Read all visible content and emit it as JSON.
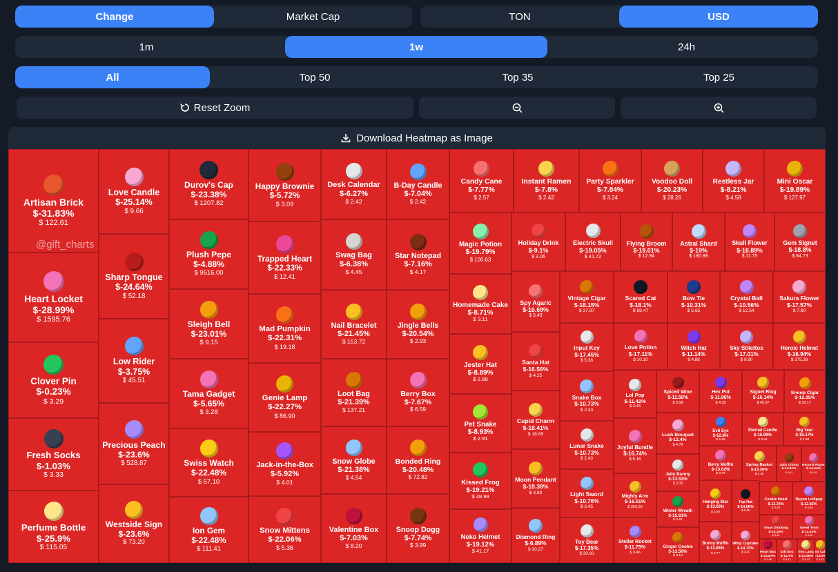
{
  "controls": {
    "metric_toggle": [
      {
        "label": "Change",
        "active": true
      },
      {
        "label": "Market Cap",
        "active": false
      }
    ],
    "currency_toggle": [
      {
        "label": "TON",
        "active": false
      },
      {
        "label": "USD",
        "active": true
      }
    ],
    "period_toggle": [
      {
        "label": "1m",
        "active": false
      },
      {
        "label": "1w",
        "active": true
      },
      {
        "label": "24h",
        "active": false
      }
    ],
    "filter_toggle": [
      {
        "label": "All",
        "active": true
      },
      {
        "label": "Top 50",
        "active": false
      },
      {
        "label": "Top 35",
        "active": false
      },
      {
        "label": "Top 25",
        "active": false
      }
    ],
    "reset_zoom_label": "Reset Zoom",
    "download_label": "Download Heatmap as Image"
  },
  "watermark": "@gift_charts",
  "colors": {
    "tile": "#dc2626",
    "active": "#3b82f6",
    "panel": "#1f2937",
    "background": "#141b27"
  },
  "tiles": [
    {
      "name": "Artisan Brick",
      "change": "$-31.83%",
      "price": "$ 122.61",
      "icon": "brick-icon",
      "color": "#e8562b"
    },
    {
      "name": "Heart Locket",
      "change": "$-28.99%",
      "price": "$ 1595.76",
      "icon": "heart-locket-icon",
      "color": "#f472b6"
    },
    {
      "name": "Clover Pin",
      "change": "$-0.23%",
      "price": "$ 3.29",
      "icon": "clover-icon",
      "color": "#22c55e"
    },
    {
      "name": "Fresh Socks",
      "change": "$-1.03%",
      "price": "$ 3.33",
      "icon": "socks-icon",
      "color": "#374151"
    },
    {
      "name": "Perfume Bottle",
      "change": "$-25.9%",
      "price": "$ 115.05",
      "icon": "perfume-icon",
      "color": "#fde68a"
    },
    {
      "name": "Love Candle",
      "change": "$-25.14%",
      "price": "$ 9.66",
      "icon": "candle-icon",
      "color": "#f9a8d4"
    },
    {
      "name": "Sharp Tongue",
      "change": "$-24.64%",
      "price": "$ 52.18",
      "icon": "lips-icon",
      "color": "#b91c1c"
    },
    {
      "name": "Low Rider",
      "change": "$-3.75%",
      "price": "$ 45.51",
      "icon": "car-icon",
      "color": "#60a5fa"
    },
    {
      "name": "Precious Peach",
      "change": "$-23.6%",
      "price": "$ 528.87",
      "icon": "peach-icon",
      "color": "#a78bfa"
    },
    {
      "name": "Westside Sign",
      "change": "$-23.6%",
      "price": "$ 73.20",
      "icon": "hand-icon",
      "color": "#fbbf24"
    },
    {
      "name": "Durov's Cap",
      "change": "$-23.38%",
      "price": "$ 1207.82",
      "icon": "cap-icon",
      "color": "#1f2937"
    },
    {
      "name": "Plush Pepe",
      "change": "$-4.88%",
      "price": "$ 9516.00",
      "icon": "frog-icon",
      "color": "#16a34a"
    },
    {
      "name": "Sleigh Bell",
      "change": "$-23.01%",
      "price": "$ 9.15",
      "icon": "bell-icon",
      "color": "#f59e0b"
    },
    {
      "name": "Tama Gadget",
      "change": "$-5.65%",
      "price": "$ 3.28",
      "icon": "gadget-icon",
      "color": "#f472b6"
    },
    {
      "name": "Swiss Watch",
      "change": "$-22.48%",
      "price": "$ 57.10",
      "icon": "watch-icon",
      "color": "#facc15"
    },
    {
      "name": "Ion Gem",
      "change": "$-22.48%",
      "price": "$ 111.41",
      "icon": "gem-icon",
      "color": "#93c5fd"
    },
    {
      "name": "Happy Brownie",
      "change": "$-5.72%",
      "price": "$ 3.09",
      "icon": "brownie-icon",
      "color": "#92400e"
    },
    {
      "name": "Trapped Heart",
      "change": "$-22.33%",
      "price": "$ 12.41",
      "icon": "heart-icon",
      "color": "#ec4899"
    },
    {
      "name": "Mad Pumpkin",
      "change": "$-22.31%",
      "price": "$ 19.18",
      "icon": "pumpkin-icon",
      "color": "#f97316"
    },
    {
      "name": "Genie Lamp",
      "change": "$-22.27%",
      "price": "$ 86.90",
      "icon": "lamp-icon",
      "color": "#eab308"
    },
    {
      "name": "Jack-in-the-Box",
      "change": "$-5.92%",
      "price": "$ 4.01",
      "icon": "box-icon",
      "color": "#a855f7"
    },
    {
      "name": "Snow Mittens",
      "change": "$-22.06%",
      "price": "$ 5.36",
      "icon": "mittens-icon",
      "color": "#ef4444"
    },
    {
      "name": "Desk Calendar",
      "change": "$-6.27%",
      "price": "$ 2.42",
      "icon": "calendar-icon",
      "color": "#e5e7eb"
    },
    {
      "name": "Swag Bag",
      "change": "$-6.38%",
      "price": "$ 4.45",
      "icon": "bag-icon",
      "color": "#d6d3d1"
    },
    {
      "name": "Nail Bracelet",
      "change": "$-21.45%",
      "price": "$ 153.72",
      "icon": "bracelet-icon",
      "color": "#fbbf24"
    },
    {
      "name": "Loot Bag",
      "change": "$-21.39%",
      "price": "$ 137.21",
      "icon": "loot-bag-icon",
      "color": "#d97706"
    },
    {
      "name": "Snow Globe",
      "change": "$-21.38%",
      "price": "$ 4.54",
      "icon": "globe-icon",
      "color": "#93c5fd"
    },
    {
      "name": "Valentine Box",
      "change": "$-7.03%",
      "price": "$ 8.20",
      "icon": "valentine-icon",
      "color": "#be123c"
    },
    {
      "name": "B-Day Candle",
      "change": "$-7.04%",
      "price": "$ 2.42",
      "icon": "bday-candle-icon",
      "color": "#60a5fa"
    },
    {
      "name": "Star Notepad",
      "change": "$-7.16%",
      "price": "$ 4.17",
      "icon": "notepad-icon",
      "color": "#7c2d12"
    },
    {
      "name": "Jingle Bells",
      "change": "$-20.54%",
      "price": "$ 2.93",
      "icon": "jingle-bells-icon",
      "color": "#f59e0b"
    },
    {
      "name": "Berry Box",
      "change": "$-7.67%",
      "price": "$ 6.59",
      "icon": "berry-icon",
      "color": "#f472b6"
    },
    {
      "name": "Bonded Ring",
      "change": "$-20.48%",
      "price": "$ 72.82",
      "icon": "ring-icon",
      "color": "#f59e0b"
    },
    {
      "name": "Snoop Dogg",
      "change": "$-7.74%",
      "price": "$ 3.99",
      "icon": "dog-icon",
      "color": "#78350f"
    },
    {
      "name": "Candy Cane",
      "change": "$-7.77%",
      "price": "$ 2.57",
      "icon": "candy-cane-icon",
      "color": "#f87171"
    },
    {
      "name": "Instant Ramen",
      "change": "$-7.8%",
      "price": "$ 2.42",
      "icon": "ramen-icon",
      "color": "#fcd34d"
    },
    {
      "name": "Party Sparkler",
      "change": "$-7.84%",
      "price": "$ 3.24",
      "icon": "sparkler-icon",
      "color": "#f97316"
    },
    {
      "name": "Voodoo Doll",
      "change": "$-20.23%",
      "price": "$ 28.26",
      "icon": "doll-icon",
      "color": "#d6a35c"
    },
    {
      "name": "Restless Jar",
      "change": "$-8.21%",
      "price": "$ 4.58",
      "icon": "jar-icon",
      "color": "#c4b5fd"
    },
    {
      "name": "Mini Oscar",
      "change": "$-19.89%",
      "price": "$ 127.97",
      "icon": "oscar-icon",
      "color": "#eab308"
    },
    {
      "name": "Magic Potion",
      "change": "$-19.79%",
      "price": "$ 100.63",
      "icon": "potion-icon",
      "color": "#86efac"
    },
    {
      "name": "Homemade Cake",
      "change": "$-8.71%",
      "price": "$ 3.11",
      "icon": "cake-icon",
      "color": "#fde68a"
    },
    {
      "name": "Jester Hat",
      "change": "$-8.89%",
      "price": "$ 2.88",
      "icon": "jester-hat-icon",
      "color": "#fbbf24"
    },
    {
      "name": "Pet Snake",
      "change": "$-8.93%",
      "price": "$ 2.91",
      "icon": "snake-icon",
      "color": "#a3e635"
    },
    {
      "name": "Kissed Frog",
      "change": "$-19.21%",
      "price": "$ 48.99",
      "icon": "kissed-frog-icon",
      "color": "#22c55e"
    },
    {
      "name": "Neko Helmet",
      "change": "$-19.12%",
      "price": "$ 41.17",
      "icon": "helmet-icon",
      "color": "#a78bfa"
    },
    {
      "name": "Holiday Drink",
      "change": "$-9.1%",
      "price": "$ 3.06",
      "icon": "drink-icon",
      "color": "#ef4444"
    },
    {
      "name": "Electric Skull",
      "change": "$-19.05%",
      "price": "$ 41.72",
      "icon": "skull-icon",
      "color": "#e5e7eb"
    },
    {
      "name": "Flying Broom",
      "change": "$-19.01%",
      "price": "$ 12.94",
      "icon": "broom-icon",
      "color": "#b45309"
    },
    {
      "name": "Astral Shard",
      "change": "$-19%",
      "price": "$ 180.88",
      "icon": "shard-icon",
      "color": "#bfdbfe"
    },
    {
      "name": "Skull Flower",
      "change": "$-18.89%",
      "price": "$ 11.75",
      "icon": "skull-flower-icon",
      "color": "#c084fc"
    },
    {
      "name": "Gem Signet",
      "change": "$-18.8%",
      "price": "$ 84.73",
      "icon": "signet-icon",
      "color": "#9ca3af"
    },
    {
      "name": "Spy Agaric",
      "change": "$-16.69%",
      "price": "$ 5.49",
      "icon": "mushroom-icon",
      "color": "#f87171"
    },
    {
      "name": "Vintage Cigar",
      "change": "$-18.15%",
      "price": "$ 37.97",
      "icon": "cigar-icon",
      "color": "#d97706"
    },
    {
      "name": "Scared Cat",
      "change": "$-18.1%",
      "price": "$ 88.47",
      "icon": "cat-icon",
      "color": "#111827"
    },
    {
      "name": "Bow Tie",
      "change": "$-10.31%",
      "price": "$ 5.65",
      "icon": "bow-tie-icon",
      "color": "#1e3a8a"
    },
    {
      "name": "Crystal Ball",
      "change": "$-10.56%",
      "price": "$ 12.54",
      "icon": "crystal-ball-icon",
      "color": "#c084fc"
    },
    {
      "name": "Sakura Flower",
      "change": "$-17.57%",
      "price": "$ 7.80",
      "icon": "sakura-icon",
      "color": "#f9a8d4"
    },
    {
      "name": "Santa Hat",
      "change": "$-16.56%",
      "price": "$ 4.25",
      "icon": "santa-hat-icon",
      "color": "#ef4444"
    },
    {
      "name": "Input Key",
      "change": "$-17.45%",
      "price": "$ 5.38",
      "icon": "key-icon",
      "color": "#e5e7eb"
    },
    {
      "name": "Love Potion",
      "change": "$-17.11%",
      "price": "$ 10.10",
      "icon": "love-potion-icon",
      "color": "#f472b6"
    },
    {
      "name": "Witch Hat",
      "change": "$-11.14%",
      "price": "$ 4.88",
      "icon": "witch-hat-icon",
      "color": "#7c3aed"
    },
    {
      "name": "Sky Stilettos",
      "change": "$-17.01%",
      "price": "$ 9.80",
      "icon": "stiletto-icon",
      "color": "#c4b5fd"
    },
    {
      "name": "Heroic Helmet",
      "change": "$-16.94%",
      "price": "$ 375.39",
      "icon": "heroic-helmet-icon",
      "color": "#fbbf24"
    },
    {
      "name": "Cupid Charm",
      "change": "$-18.41%",
      "price": "$ 18.65",
      "icon": "cupid-icon",
      "color": "#fcd34d"
    },
    {
      "name": "Snake Box",
      "change": "$-10.73%",
      "price": "$ 2.43",
      "icon": "snake-box-icon",
      "color": "#93c5fd"
    },
    {
      "name": "Lol Pop",
      "change": "$-11.42%",
      "price": "$ 3.43",
      "icon": "lollipop-icon",
      "color": "#e5e7eb"
    },
    {
      "name": "Spiced Wine",
      "change": "$-11.58%",
      "price": "$ 3.08",
      "icon": "wine-icon",
      "color": "#991b1b"
    },
    {
      "name": "Hex Pot",
      "change": "$-11.96%",
      "price": "$ 4.30",
      "icon": "hex-pot-icon",
      "color": "#7c3aed"
    },
    {
      "name": "Signet Ring",
      "change": "$-16.14%",
      "price": "$ 45.37",
      "icon": "signet-ring-icon",
      "color": "#fbbf24"
    },
    {
      "name": "Snoop Cigar",
      "change": "$-12.35%",
      "price": "$ 10.17",
      "icon": "snoop-cigar-icon",
      "color": "#f59e0b"
    },
    {
      "name": "Moon Pendant",
      "change": "$-18.38%",
      "price": "$ 3.83",
      "icon": "moon-icon",
      "color": "#fbbf24"
    },
    {
      "name": "Lunar Snake",
      "change": "$-10.73%",
      "price": "$ 2.43",
      "icon": "lunar-snake-icon",
      "color": "#e5e7eb"
    },
    {
      "name": "Joyful Bundle",
      "change": "$-16.74%",
      "price": "$ 5.16",
      "icon": "bundle-icon",
      "color": "#f472b6"
    },
    {
      "name": "Lush Bouquet",
      "change": "$-12.4%",
      "price": "$ 4.76",
      "icon": "bouquet-icon",
      "color": "#f9a8d4"
    },
    {
      "name": "Evil Eye",
      "change": "$-12.8%",
      "price": "$ 5.88",
      "icon": "evil-eye-icon",
      "color": "#3b82f6"
    },
    {
      "name": "Eternal Candle",
      "change": "$-15.99%",
      "price": "$ 5.55",
      "icon": "eternal-candle-icon",
      "color": "#fde68a"
    },
    {
      "name": "Big Year",
      "change": "$-15.17%",
      "price": "$ 4.98",
      "icon": "big-year-icon",
      "color": "#fbbf24"
    },
    {
      "name": "Light Sword",
      "change": "$-10.76%",
      "price": "$ 3.45",
      "icon": "sword-icon",
      "color": "#93c5fd"
    },
    {
      "name": "Mighty Arm",
      "change": "$-16.51%",
      "price": "$ 263.65",
      "icon": "arm-icon",
      "color": "#fbbf24"
    },
    {
      "name": "Jelly Bunny",
      "change": "$-13.53%",
      "price": "$ 3.33",
      "icon": "bunny-icon",
      "color": "#e5e7eb"
    },
    {
      "name": "Berry Muffin",
      "change": "$-13.62%",
      "price": "$ 3.37",
      "icon": "muffin-icon",
      "color": "#f472b6"
    },
    {
      "name": "Spring Basket",
      "change": "$-15.36%",
      "price": "$ 4.36",
      "icon": "basket-icon",
      "color": "#fcd34d"
    },
    {
      "name": "Jolly Chimp",
      "change": "$-14.81%",
      "price": "$ 4.61",
      "icon": "chimp-icon",
      "color": "#92400e"
    },
    {
      "name": "Record Player",
      "change": "$-14.44%",
      "price": "$ 6.61",
      "icon": "record-icon",
      "color": "#f472b6"
    },
    {
      "name": "Diamond Ring",
      "change": "$-6.89%",
      "price": "$ 30.27",
      "icon": "diamond-ring-icon",
      "color": "#93c5fd"
    },
    {
      "name": "Toy Bear",
      "change": "$-17.35%",
      "price": "$ 30.60",
      "icon": "bear-icon",
      "color": "#e5e7eb"
    },
    {
      "name": "Stellar Rocket",
      "change": "$-11.75%",
      "price": "$ 3.46",
      "icon": "rocket-icon",
      "color": "#a78bfa"
    },
    {
      "name": "Winter Wreath",
      "change": "$-15.61%",
      "price": "$ 3.61",
      "icon": "wreath-icon",
      "color": "#16a34a"
    },
    {
      "name": "Ginger Cookie",
      "change": "$-13.56%",
      "price": "$ 3.18",
      "icon": "cookie-icon",
      "color": "#d97706"
    },
    {
      "name": "Hanging Star",
      "change": "$-13.03%",
      "price": "$ 3.50",
      "icon": "star-icon",
      "color": "#facc15"
    },
    {
      "name": "Bunny Muffin",
      "change": "$-13.85%",
      "price": "$ 3.77",
      "icon": "bunny-muffin-icon",
      "color": "#f9a8d4"
    },
    {
      "name": "Top Hat",
      "change": "$-14.66%",
      "price": "$ 5.38",
      "icon": "top-hat-icon",
      "color": "#111827"
    },
    {
      "name": "Whip Cupcake",
      "change": "$-14.72%",
      "price": "$ 3.31",
      "icon": "cupcake-icon",
      "color": "#f9a8d4"
    },
    {
      "name": "Cookie Heart",
      "change": "$-13.34%",
      "price": "$ 3.28",
      "icon": "cookie-heart-icon",
      "color": "#d97706"
    },
    {
      "name": "Hypno Lollipop",
      "change": "$-12.83%",
      "price": "$ 4.63",
      "icon": "hypno-icon",
      "color": "#c084fc"
    },
    {
      "name": "Xmas Stocking",
      "change": "$-15.18%",
      "price": "$ 3.25",
      "icon": "stocking-icon",
      "color": "#ef4444"
    },
    {
      "name": "Sweet Treat",
      "change": "$-13.31%",
      "price": "$ 3.60",
      "icon": "treat-icon",
      "color": "#f472b6"
    },
    {
      "name": "Heart Box",
      "change": "$-14.87%",
      "price": "$ 3.88",
      "icon": "heart-box-icon",
      "color": "#be123c"
    },
    {
      "name": "Gift Box",
      "change": "$-14.7%",
      "price": "$ 3.47",
      "icon": "gift-box-icon",
      "color": "#f87171"
    },
    {
      "name": "Tiny Lamp",
      "change": "$-13.95%",
      "price": "$ 3.22",
      "icon": "tiny-lamp-icon",
      "color": "#fde68a"
    },
    {
      "name": "Mini Cake",
      "change": "$-13.9%",
      "price": "$ 3.12",
      "icon": "mini-cake-icon",
      "color": "#fbbf24"
    }
  ]
}
